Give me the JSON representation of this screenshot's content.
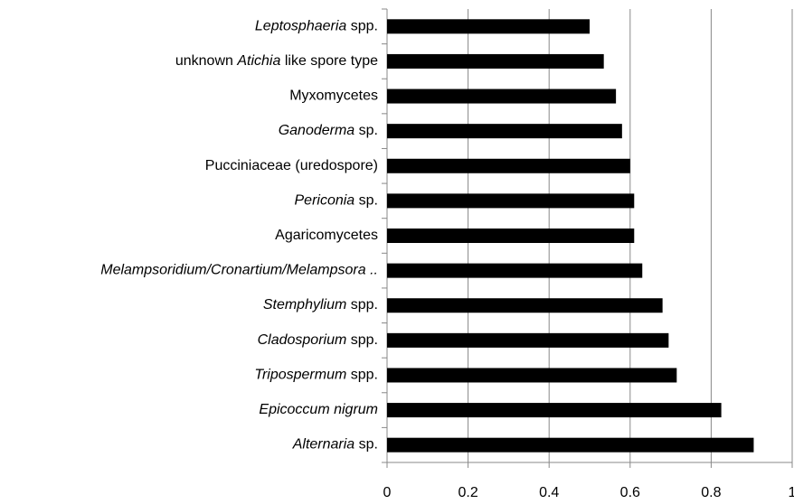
{
  "chart_data": {
    "type": "hbar",
    "categories": [
      [
        {
          "text": "Leptosphaeria",
          "italic": true
        },
        {
          "text": " spp."
        }
      ],
      [
        {
          "text": "unknown "
        },
        {
          "text": "Atichia",
          "italic": true
        },
        {
          "text": " like spore type"
        }
      ],
      [
        {
          "text": "Myxomycetes"
        }
      ],
      [
        {
          "text": "Ganoderma",
          "italic": true
        },
        {
          "text": " sp."
        }
      ],
      [
        {
          "text": "Pucciniaceae (uredospore)"
        }
      ],
      [
        {
          "text": "Periconia",
          "italic": true
        },
        {
          "text": " sp."
        }
      ],
      [
        {
          "text": "Agaricomycetes"
        }
      ],
      [
        {
          "text": "Melampsoridium/Cronartium/Melampsora ..",
          "italic": true
        }
      ],
      [
        {
          "text": "Stemphylium",
          "italic": true
        },
        {
          "text": " spp."
        }
      ],
      [
        {
          "text": "Cladosporium",
          "italic": true
        },
        {
          "text": " spp."
        }
      ],
      [
        {
          "text": "Tripospermum",
          "italic": true
        },
        {
          "text": " spp."
        }
      ],
      [
        {
          "text": "Epicoccum nigrum",
          "italic": true
        }
      ],
      [
        {
          "text": "Alternaria",
          "italic": true
        },
        {
          "text": " sp."
        }
      ]
    ],
    "values": [
      0.5,
      0.535,
      0.565,
      0.58,
      0.6,
      0.61,
      0.61,
      0.63,
      0.68,
      0.695,
      0.715,
      0.825,
      0.905
    ],
    "color": "#000000",
    "xlim": [
      0,
      1
    ],
    "xticks": [
      0,
      0.2,
      0.4,
      0.6,
      0.8,
      1
    ],
    "grid": true
  }
}
